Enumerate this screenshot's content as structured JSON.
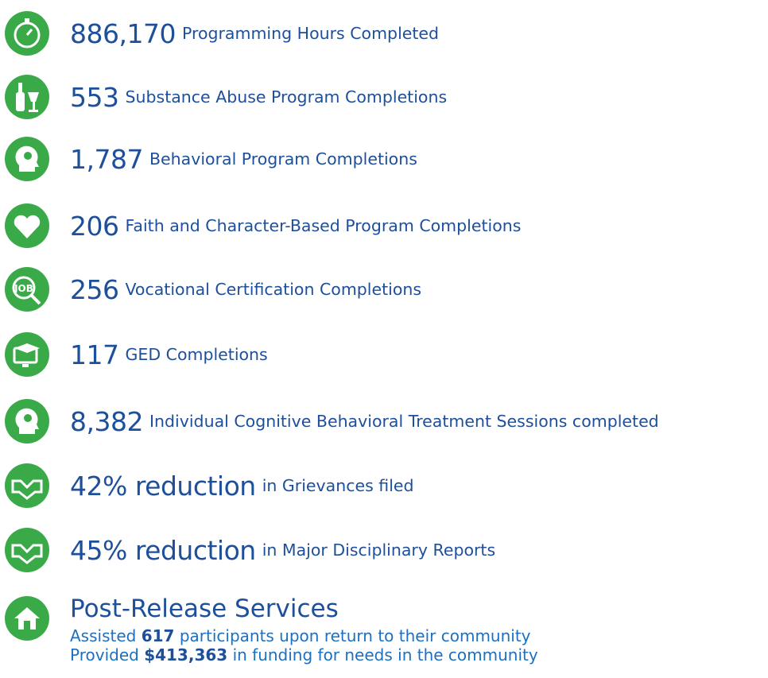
{
  "items": [
    {
      "big": "886,170",
      "text": "Programming Hours Completed"
    },
    {
      "big": "553",
      "text": "Substance Abuse Program Completions"
    },
    {
      "big": "1,787",
      "text": "Behavioral Program Completions"
    },
    {
      "big": "206",
      "text": "Faith and Character-Based Program Completions"
    },
    {
      "big": "256",
      "text": "Vocational Certification Completions"
    },
    {
      "big": "117",
      "text": "GED Completions"
    },
    {
      "big": "8,382",
      "text": "Individual Cognitive Behavioral Treatment Sessions completed"
    },
    {
      "big": "42% reduction",
      "text": "in Grievances filed"
    },
    {
      "big": "45% reduction",
      "text": "in Major Disciplinary Reports"
    }
  ],
  "post_release": {
    "title": "Post-Release Services",
    "lines": [
      {
        "prefix": "Assisted",
        "bold": "617",
        "suffix": "participants upon return to their community"
      },
      {
        "prefix": "Provided",
        "bold": "$413,363",
        "suffix": "in funding for needs in the community"
      }
    ]
  }
}
